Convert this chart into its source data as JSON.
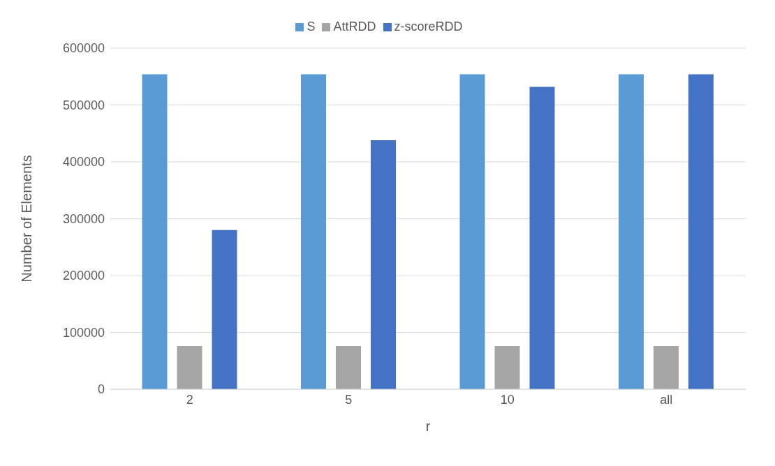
{
  "chart_data": {
    "type": "bar",
    "xlabel": "r",
    "ylabel": "Number of Elements",
    "categories": [
      "2",
      "5",
      "10",
      "all"
    ],
    "series": [
      {
        "name": "S",
        "color": "#5b9bd5",
        "values": [
          554000,
          554000,
          554000,
          554000
        ]
      },
      {
        "name": "AttRDD",
        "color": "#a5a5a5",
        "values": [
          76000,
          76000,
          76000,
          76000
        ]
      },
      {
        "name": "z-scoreRDD",
        "color": "#4472c4",
        "values": [
          280000,
          438000,
          532000,
          554000
        ]
      }
    ],
    "ylim": [
      0,
      600000
    ],
    "yticks": [
      0,
      100000,
      200000,
      300000,
      400000,
      500000,
      600000
    ],
    "grid": "y",
    "legend": "top"
  }
}
